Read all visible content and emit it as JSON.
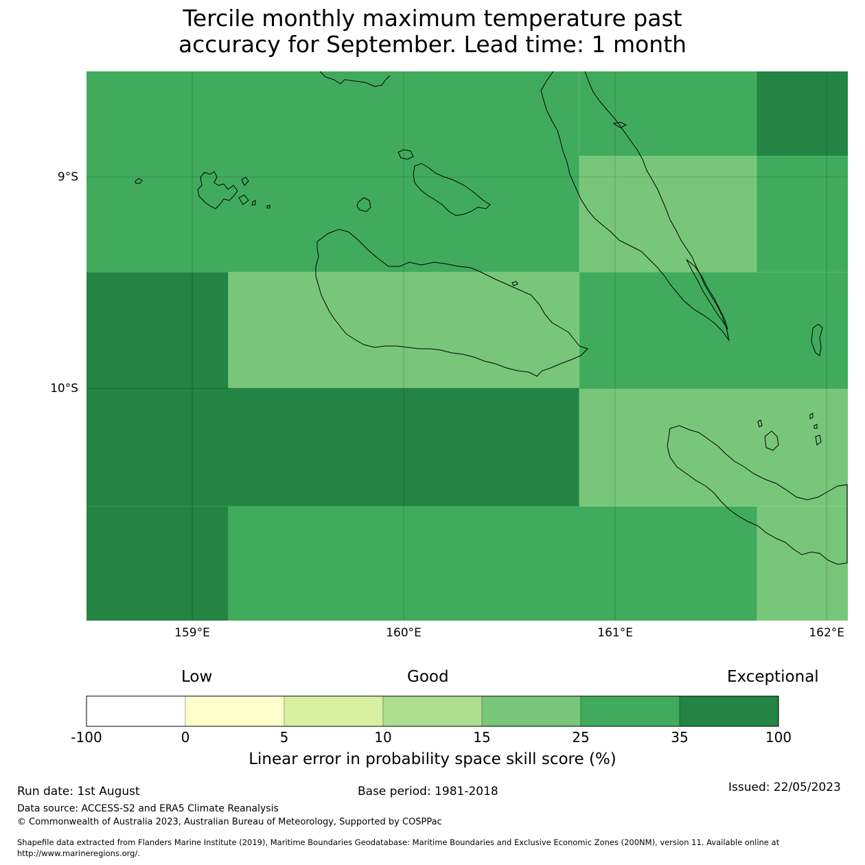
{
  "title": {
    "line1": "Tercile monthly maximum temperature past",
    "line2": "accuracy for September. Lead time: 1 month"
  },
  "map": {
    "lon_range": [
      158.5,
      162.1
    ],
    "lat_range": [
      -11.1,
      -8.5
    ],
    "lat_ticks": [
      {
        "value": -9,
        "label": "9°S"
      },
      {
        "value": -10,
        "label": "10°S"
      }
    ],
    "lon_ticks": [
      {
        "value": 159,
        "label": "159°E"
      },
      {
        "value": 160,
        "label": "160°E"
      },
      {
        "value": 161,
        "label": "161°E"
      },
      {
        "value": 162,
        "label": "162°E"
      }
    ],
    "gridlines": true,
    "grid_cells": [
      {
        "lon0": 158.5,
        "lon1": 160.83,
        "lat0": -8.5,
        "lat1": -9.45,
        "category": "25-35"
      },
      {
        "lon0": 160.83,
        "lon1": 161.67,
        "lat0": -8.5,
        "lat1": -8.9,
        "category": "25-35"
      },
      {
        "lon0": 161.67,
        "lon1": 162.1,
        "lat0": -8.5,
        "lat1": -8.9,
        "category": "35-100"
      },
      {
        "lon0": 160.83,
        "lon1": 161.67,
        "lat0": -8.9,
        "lat1": -9.45,
        "category": "15-25"
      },
      {
        "lon0": 161.67,
        "lon1": 162.1,
        "lat0": -8.9,
        "lat1": -9.45,
        "category": "25-35"
      },
      {
        "lon0": 158.5,
        "lon1": 159.17,
        "lat0": -9.45,
        "lat1": -10.0,
        "category": "35-100"
      },
      {
        "lon0": 159.17,
        "lon1": 160.83,
        "lat0": -9.45,
        "lat1": -10.0,
        "category": "15-25"
      },
      {
        "lon0": 160.83,
        "lon1": 162.1,
        "lat0": -9.45,
        "lat1": -10.0,
        "category": "25-35"
      },
      {
        "lon0": 158.5,
        "lon1": 160.83,
        "lat0": -10.0,
        "lat1": -10.56,
        "category": "35-100"
      },
      {
        "lon0": 160.83,
        "lon1": 162.1,
        "lat0": -10.0,
        "lat1": -10.56,
        "category": "15-25"
      },
      {
        "lon0": 158.5,
        "lon1": 159.17,
        "lat0": -10.56,
        "lat1": -11.1,
        "category": "35-100"
      },
      {
        "lon0": 159.17,
        "lon1": 161.67,
        "lat0": -10.56,
        "lat1": -11.1,
        "category": "25-35"
      },
      {
        "lon0": 161.67,
        "lon1": 162.1,
        "lat0": -10.56,
        "lat1": -11.1,
        "category": "15-25"
      }
    ]
  },
  "colorbar": {
    "categories": {
      "low": "Low",
      "good": "Good",
      "exceptional": "Exceptional"
    },
    "ticks": [
      "-100",
      "0",
      "5",
      "10",
      "15",
      "25",
      "35",
      "100"
    ],
    "bins": [
      {
        "range": "-100-0",
        "color": "#ffffff"
      },
      {
        "range": "0-5",
        "color": "#ffffcc"
      },
      {
        "range": "5-10",
        "color": "#d9f0a3"
      },
      {
        "range": "10-15",
        "color": "#addd8e"
      },
      {
        "range": "15-25",
        "color": "#78c679"
      },
      {
        "range": "25-35",
        "color": "#41ab5d"
      },
      {
        "range": "35-100",
        "color": "#238443"
      }
    ],
    "label": "Linear error in probability space skill score (%)"
  },
  "footer": {
    "run_date": "Run date: 1st August",
    "base_period": "Base period: 1981-2018",
    "issued": "Issued: 22/05/2023",
    "data_source": "Data source: ACCESS-S2 and ERA5 Climate Reanalysis",
    "copyright": "© Commonwealth of Australia 2023, Australian Bureau of Meteorology, Supported by COSPPac",
    "shapefile_line1": "Shapefile data extracted from Flanders Marine Institute (2019), Maritime Boundaries Geodatabase: Maritime Boundaries and Exclusive Economic Zones (200NM), version 11. Available online at",
    "shapefile_line2": "http://www.marineregions.org/."
  }
}
